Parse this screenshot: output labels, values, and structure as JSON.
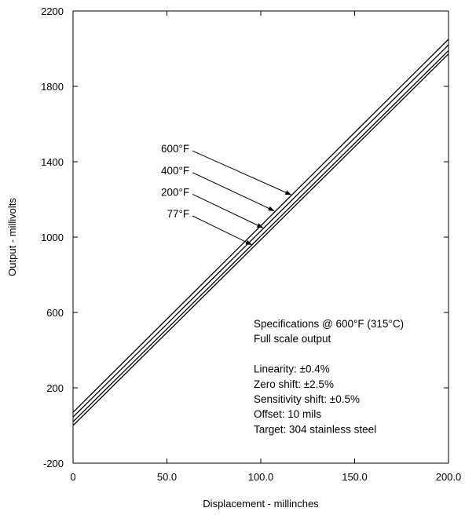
{
  "chart_data": {
    "type": "line",
    "title": "",
    "xlabel": "Displacement - millinches",
    "ylabel": "Output - millivolts",
    "xlim": [
      0,
      200
    ],
    "ylim": [
      -200,
      2200
    ],
    "x_ticks": [
      0,
      50,
      100,
      150,
      200
    ],
    "x_tick_labels": [
      "0",
      "50.0",
      "100.0",
      "150.0",
      "200.0"
    ],
    "y_ticks": [
      -200,
      200,
      600,
      1000,
      1400,
      1800,
      2200
    ],
    "y_tick_labels": [
      "-200",
      "200",
      "600",
      "1000",
      "1400",
      "1800",
      "2200"
    ],
    "grid": false,
    "legend": "none",
    "series": [
      {
        "name": "600°F",
        "x": [
          0,
          200
        ],
        "y": [
          70,
          2050
        ]
      },
      {
        "name": "400°F",
        "x": [
          0,
          200
        ],
        "y": [
          45,
          2020
        ]
      },
      {
        "name": "200°F",
        "x": [
          0,
          200
        ],
        "y": [
          20,
          1990
        ]
      },
      {
        "name": "77°F",
        "x": [
          0,
          200
        ],
        "y": [
          0,
          1972
        ]
      }
    ],
    "series_annotations": [
      {
        "text": "600°F",
        "label_at": [
          62,
          1470
        ],
        "arrow_to": [
          116,
          1225
        ]
      },
      {
        "text": "400°F",
        "label_at": [
          62,
          1355
        ],
        "arrow_to": [
          107,
          1140
        ]
      },
      {
        "text": "200°F",
        "label_at": [
          62,
          1240
        ],
        "arrow_to": [
          101,
          1050
        ]
      },
      {
        "text": "77°F",
        "label_at": [
          62,
          1125
        ],
        "arrow_to": [
          95,
          960
        ]
      }
    ],
    "annotations": [
      "Specifications @ 600°F (315°C)",
      "Full scale output",
      "",
      "Linearity: ±0.4%",
      "Zero shift: ±2.5%",
      "Sensitivity shift: ±0.5%",
      "Offset: 10 mils",
      "Target: 304 stainless steel"
    ]
  }
}
